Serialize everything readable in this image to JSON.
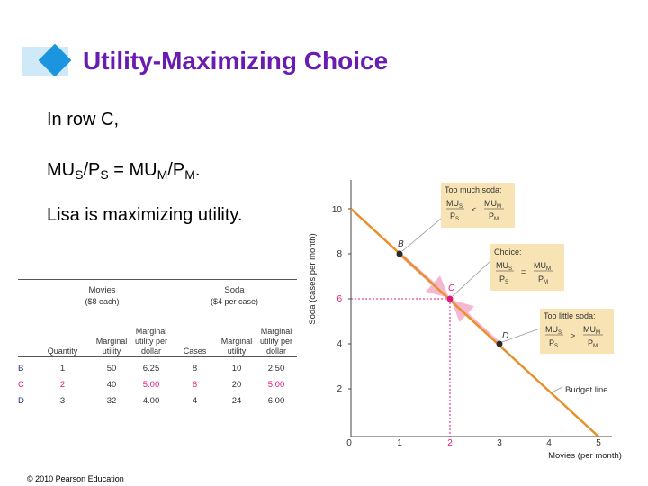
{
  "slide": {
    "title": "Utility-Maximizing Choice",
    "bullet1": "In row C,",
    "bullet2": {
      "mu_s": "MU",
      "sub_s": "S",
      "p_s": "/P",
      "sub_ps": "S",
      "eq": " = MU",
      "sub_m": "M",
      "p_m": "/P",
      "sub_pm": "M",
      "end": "."
    },
    "bullet3": "Lisa is maximizing utility.",
    "copyright": "© 2010 Pearson Education"
  },
  "table": {
    "movies_group": "Movies",
    "movies_price": "($8 each)",
    "soda_group": "Soda",
    "soda_price": "($4 per case)",
    "headers": [
      "Quantity",
      "Marginal utility",
      "Marginal utility per dollar",
      "Cases",
      "Marginal utility",
      "Marginal utility per dollar"
    ],
    "rows": [
      {
        "label": "B",
        "q": "1",
        "mu": "50",
        "mupd": "6.25",
        "cases": "8",
        "smu": "10",
        "smupd": "2.50"
      },
      {
        "label": "C",
        "q": "2",
        "mu": "40",
        "mupd": "5.00",
        "cases": "6",
        "smu": "20",
        "smupd": "5.00"
      },
      {
        "label": "D",
        "q": "3",
        "mu": "32",
        "mupd": "4.00",
        "cases": "4",
        "smu": "24",
        "smupd": "6.00"
      }
    ]
  },
  "graph": {
    "ylabel": "Soda (cases per month)",
    "xlabel": "Movies (per month)",
    "yticks": [
      "10",
      "8",
      "6",
      "4",
      "2"
    ],
    "xticks": [
      "0",
      "1",
      "2",
      "3",
      "4",
      "5"
    ],
    "line_label": "Budget line",
    "points": {
      "B": "B",
      "C": "C",
      "D": "D"
    },
    "box_too_much": {
      "title": "Too much soda:",
      "num_s": "MU",
      "sub_s": "S",
      "den_s": "P",
      "dsub_s": "S",
      "op": "<",
      "num_m": "MU",
      "sub_m": "M",
      "den_m": "P",
      "dsub_m": "M"
    },
    "box_choice": {
      "title": "Choice:",
      "num_s": "MU",
      "sub_s": "S",
      "den_s": "P",
      "dsub_s": "S",
      "op": "=",
      "num_m": "MU",
      "sub_m": "M",
      "den_m": "P",
      "dsub_m": "M"
    },
    "box_too_little": {
      "title": "Too little soda:",
      "num_s": "MU",
      "sub_s": "S",
      "den_s": "P",
      "dsub_s": "S",
      "op": ">",
      "num_m": "MU",
      "sub_m": "M",
      "den_m": "P",
      "dsub_m": "M"
    },
    "colors": {
      "line": "#e8902a",
      "point": "#2a2a2a",
      "highlight": "#e0177a",
      "box": "#f7e3b4",
      "arrow": "#f4b8d0"
    }
  }
}
